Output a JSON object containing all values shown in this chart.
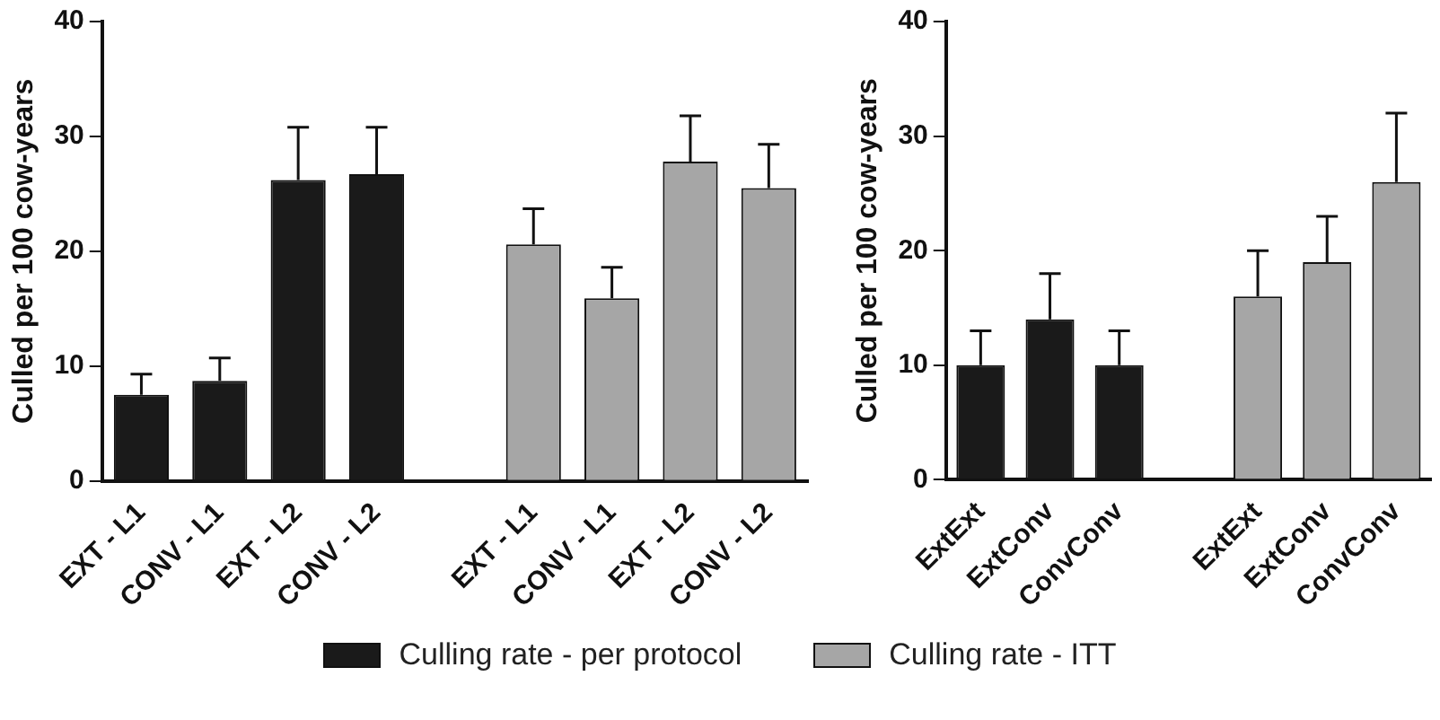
{
  "chart_data": [
    {
      "type": "bar",
      "ylabel": "Culled per 100 cow-years",
      "categories": [
        "EXT - L1",
        "CONV - L1",
        "EXT - L2",
        "CONV - L2",
        null,
        "EXT - L1",
        "CONV - L1",
        "EXT - L2",
        "CONV - L2"
      ],
      "series": [
        {
          "name": "Culling rate - per protocol",
          "color": "#1a1a1a",
          "values": [
            7.5,
            8.7,
            26.2,
            26.7,
            null,
            null,
            null,
            null,
            null
          ],
          "errors": [
            [
              7.5,
              9.3
            ],
            [
              8.7,
              10.7
            ],
            [
              26.2,
              30.8
            ],
            [
              26.7,
              30.8
            ],
            null,
            null,
            null,
            null,
            null
          ]
        },
        {
          "name": "Culling rate - ITT",
          "color": "#a6a6a6",
          "values": [
            null,
            null,
            null,
            null,
            null,
            20.6,
            15.9,
            27.8,
            25.5
          ],
          "errors": [
            null,
            null,
            null,
            null,
            null,
            [
              20.6,
              23.7
            ],
            [
              15.9,
              18.6
            ],
            [
              27.8,
              31.8
            ],
            [
              25.5,
              29.3
            ]
          ]
        }
      ],
      "ylim": [
        0,
        40
      ],
      "yticks": [
        0,
        10,
        20,
        30,
        40
      ],
      "grid": false,
      "legend": "bottom"
    },
    {
      "type": "bar",
      "ylabel": "Culled per 100 cow-years",
      "categories": [
        "ExtExt",
        "ExtConv",
        "ConvConv",
        null,
        "ExtExt",
        "ExtConv",
        "ConvConv"
      ],
      "series": [
        {
          "color": "#1a1a1a",
          "values": [
            10,
            14,
            10,
            null,
            null,
            null,
            null
          ],
          "errors": [
            [
              10,
              13
            ],
            [
              14,
              18
            ],
            [
              10,
              13
            ],
            null,
            null,
            null,
            null
          ]
        },
        {
          "color": "#a6a6a6",
          "values": [
            null,
            null,
            null,
            null,
            16,
            19,
            26
          ],
          "errors": [
            null,
            null,
            null,
            null,
            [
              16,
              20
            ],
            [
              19,
              23
            ],
            [
              26,
              32
            ]
          ]
        }
      ],
      "ylim": [
        0,
        40
      ],
      "yticks": [
        0,
        10,
        20,
        30,
        40
      ],
      "grid": false
    }
  ]
}
